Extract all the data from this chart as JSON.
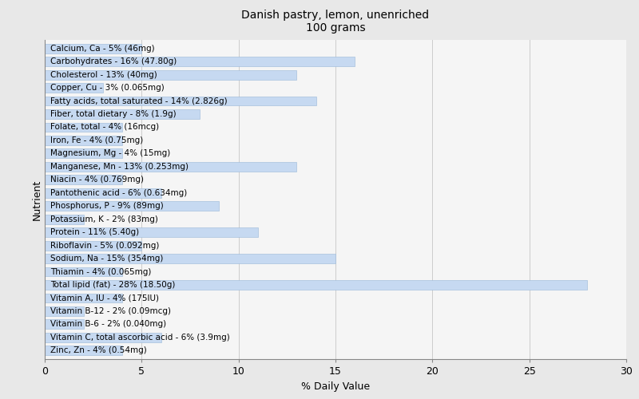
{
  "title": "Danish pastry, lemon, unenriched\n100 grams",
  "xlabel": "% Daily Value",
  "ylabel": "Nutrient",
  "xlim": [
    0,
    30
  ],
  "bar_color": "#c6d9f1",
  "bar_edge_color": "#9ab8d8",
  "background_color": "#e8e8e8",
  "plot_background_color": "#f5f5f5",
  "nutrients": [
    {
      "label": "Calcium, Ca - 5% (46mg)",
      "value": 5
    },
    {
      "label": "Carbohydrates - 16% (47.80g)",
      "value": 16
    },
    {
      "label": "Cholesterol - 13% (40mg)",
      "value": 13
    },
    {
      "label": "Copper, Cu - 3% (0.065mg)",
      "value": 3
    },
    {
      "label": "Fatty acids, total saturated - 14% (2.826g)",
      "value": 14
    },
    {
      "label": "Fiber, total dietary - 8% (1.9g)",
      "value": 8
    },
    {
      "label": "Folate, total - 4% (16mcg)",
      "value": 4
    },
    {
      "label": "Iron, Fe - 4% (0.75mg)",
      "value": 4
    },
    {
      "label": "Magnesium, Mg - 4% (15mg)",
      "value": 4
    },
    {
      "label": "Manganese, Mn - 13% (0.253mg)",
      "value": 13
    },
    {
      "label": "Niacin - 4% (0.769mg)",
      "value": 4
    },
    {
      "label": "Pantothenic acid - 6% (0.634mg)",
      "value": 6
    },
    {
      "label": "Phosphorus, P - 9% (89mg)",
      "value": 9
    },
    {
      "label": "Potassium, K - 2% (83mg)",
      "value": 2
    },
    {
      "label": "Protein - 11% (5.40g)",
      "value": 11
    },
    {
      "label": "Riboflavin - 5% (0.092mg)",
      "value": 5
    },
    {
      "label": "Sodium, Na - 15% (354mg)",
      "value": 15
    },
    {
      "label": "Thiamin - 4% (0.065mg)",
      "value": 4
    },
    {
      "label": "Total lipid (fat) - 28% (18.50g)",
      "value": 28
    },
    {
      "label": "Vitamin A, IU - 4% (175IU)",
      "value": 4
    },
    {
      "label": "Vitamin B-12 - 2% (0.09mcg)",
      "value": 2
    },
    {
      "label": "Vitamin B-6 - 2% (0.040mg)",
      "value": 2
    },
    {
      "label": "Vitamin C, total ascorbic acid - 6% (3.9mg)",
      "value": 6
    },
    {
      "label": "Zinc, Zn - 4% (0.54mg)",
      "value": 4
    }
  ],
  "tick_positions": [
    0,
    5,
    10,
    15,
    20,
    25,
    30
  ],
  "grid_color": "#cccccc",
  "title_fontsize": 10,
  "label_fontsize": 7.5,
  "axis_label_fontsize": 9
}
